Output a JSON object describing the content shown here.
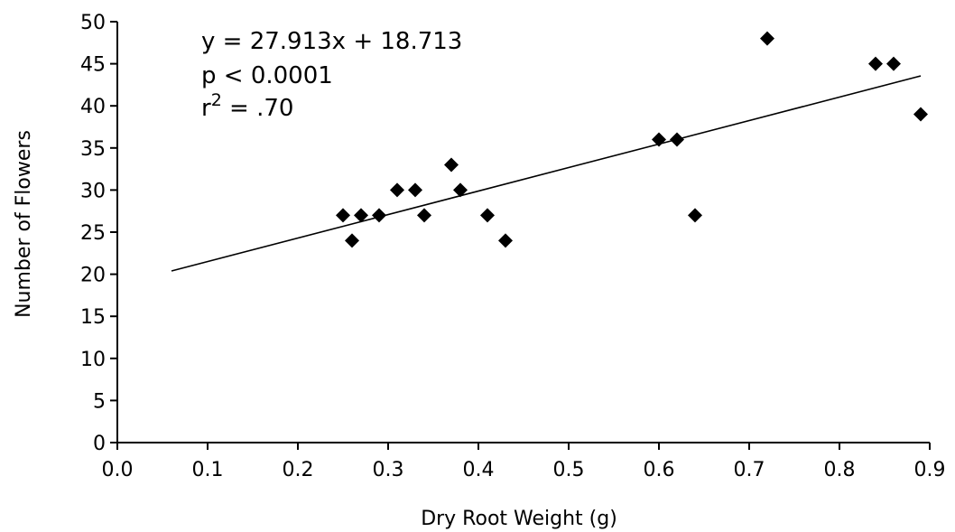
{
  "chart_data": {
    "type": "scatter",
    "title": "",
    "xlabel": "Dry Root Weight (g)",
    "ylabel": "Number of Flowers",
    "xlim": [
      0.0,
      0.9
    ],
    "ylim": [
      0,
      50
    ],
    "xticks": [
      "0.0",
      "0.1",
      "0.2",
      "0.3",
      "0.4",
      "0.5",
      "0.6",
      "0.7",
      "0.8",
      "0.9"
    ],
    "yticks": [
      "0",
      "5",
      "10",
      "15",
      "20",
      "25",
      "30",
      "35",
      "40",
      "45",
      "50"
    ],
    "grid": false,
    "legend": "none",
    "series": [
      {
        "x": [
          0.25,
          0.26,
          0.27,
          0.29,
          0.31,
          0.33,
          0.34,
          0.37,
          0.38,
          0.41,
          0.43,
          0.6,
          0.62,
          0.64,
          0.72,
          0.84,
          0.86,
          0.89
        ],
        "y": [
          27,
          24,
          27,
          27,
          30,
          30,
          27,
          33,
          30,
          27,
          24,
          36,
          36,
          27,
          48,
          45,
          45,
          39
        ]
      }
    ],
    "trendline": {
      "slope": 27.913,
      "intercept": 18.713,
      "x_range": [
        0.06,
        0.89
      ]
    },
    "annotations": {
      "equation": "y = 27.913x + 18.713",
      "p_value": "p < 0.0001",
      "r2_base": "r",
      "r2_sup": "2",
      "r2_value": " = .70"
    }
  }
}
